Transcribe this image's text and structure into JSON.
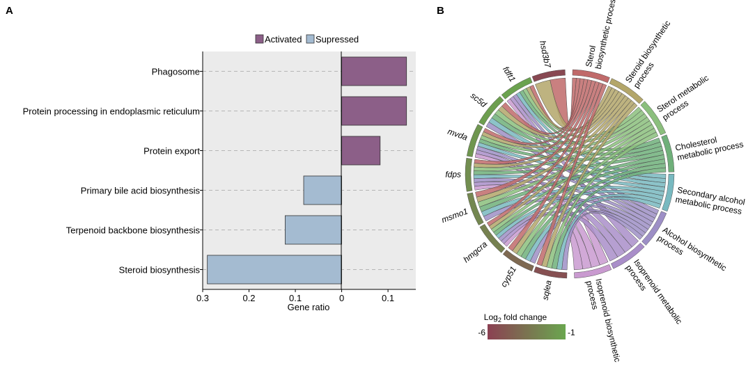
{
  "panel_a_label": "A",
  "panel_b_label": "B",
  "chart_data": [
    {
      "type": "bar",
      "orientation": "horizontal",
      "title": "",
      "xlabel": "Gene ratio",
      "ylabel": "",
      "categories": [
        "Phagosome",
        "Protein processing in endoplasmic reticulum",
        "Protein export",
        "Primary bile acid biosynthesis",
        "Terpenoid backbone biosynthesis",
        "Steroid biosynthesis"
      ],
      "values": [
        0.14,
        0.14,
        0.083,
        -0.082,
        -0.122,
        -0.29
      ],
      "groups": [
        "Activated",
        "Activated",
        "Activated",
        "Supressed",
        "Supressed",
        "Supressed"
      ],
      "x_axis_note": "negative values are plotted to the left of zero; tick labels show absolute values",
      "xlim": [
        -0.3,
        0.16
      ],
      "xticks": [
        -0.3,
        -0.2,
        -0.1,
        0,
        0.1
      ],
      "xtick_labels": [
        "0.3",
        "0.2",
        "0.1",
        "0",
        "0.1"
      ],
      "legend": {
        "position": "top",
        "entries": [
          {
            "label": "Activated",
            "color": "#8c5f88"
          },
          {
            "label": "Supressed",
            "color": "#a4bbd1"
          }
        ]
      },
      "colors": {
        "Activated": "#8c5f88",
        "Supressed": "#a4bbd1",
        "panel_bg": "#ebebeb",
        "gridline": "#b5b5b5"
      }
    },
    {
      "type": "chord",
      "genes": [
        "hsd3b7",
        "fdft1",
        "sc5d",
        "mvda",
        "fdps",
        "msmo1",
        "hmgcra",
        "cyp51",
        "sqlea"
      ],
      "gene_log2_fold_change": [
        -5.6,
        -1.2,
        -1.4,
        -1.8,
        -2.2,
        -2.5,
        -2.8,
        -4.0,
        -5.2
      ],
      "terms": [
        "Sterol biosynthetic process",
        "Steroid biosynthetic process",
        "Sterol metabolic process",
        "Cholesterol metabolic process",
        "Secondary alcohol metabolic process",
        "Alcohol biosynthetic process",
        "Isoprenoid metabolic process",
        "Isoprenoid biosynthetic process"
      ],
      "term_label_lines": [
        [
          "Sterol",
          "biosynthetic process"
        ],
        [
          "Steroid biosynthetic",
          "process"
        ],
        [
          "Sterol metabolic",
          "process"
        ],
        [
          "Cholesterol",
          "metabolic process"
        ],
        [
          "Secondary alcohol",
          "metabolic process"
        ],
        [
          "Alcohol biosynthetic",
          "process"
        ],
        [
          "Isoprenoid metabolic",
          "process"
        ],
        [
          "Isoprenoid biosynthetic",
          "process"
        ]
      ],
      "term_colors": [
        "#c06a6a",
        "#b3a66a",
        "#8bbf7d",
        "#6fb07a",
        "#78b9c0",
        "#9d8fc6",
        "#a98ec9",
        "#c99ad0"
      ],
      "links": [
        {
          "gene": "hsd3b7",
          "terms": [
            "Sterol biosynthetic process",
            "Steroid biosynthetic process"
          ]
        },
        {
          "gene": "fdft1",
          "terms": [
            "Sterol biosynthetic process",
            "Steroid biosynthetic process",
            "Sterol metabolic process",
            "Cholesterol metabolic process",
            "Secondary alcohol metabolic process",
            "Alcohol biosynthetic process",
            "Isoprenoid metabolic process",
            "Isoprenoid biosynthetic process"
          ]
        },
        {
          "gene": "sc5d",
          "terms": [
            "Sterol biosynthetic process",
            "Steroid biosynthetic process",
            "Sterol metabolic process",
            "Cholesterol metabolic process",
            "Secondary alcohol metabolic process",
            "Alcohol biosynthetic process"
          ]
        },
        {
          "gene": "mvda",
          "terms": [
            "Sterol biosynthetic process",
            "Steroid biosynthetic process",
            "Sterol metabolic process",
            "Cholesterol metabolic process",
            "Secondary alcohol metabolic process",
            "Alcohol biosynthetic process",
            "Isoprenoid metabolic process",
            "Isoprenoid biosynthetic process"
          ]
        },
        {
          "gene": "fdps",
          "terms": [
            "Sterol biosynthetic process",
            "Steroid biosynthetic process",
            "Sterol metabolic process",
            "Cholesterol metabolic process",
            "Secondary alcohol metabolic process",
            "Alcohol biosynthetic process",
            "Isoprenoid metabolic process",
            "Isoprenoid biosynthetic process"
          ]
        },
        {
          "gene": "msmo1",
          "terms": [
            "Sterol biosynthetic process",
            "Steroid biosynthetic process",
            "Sterol metabolic process",
            "Cholesterol metabolic process",
            "Secondary alcohol metabolic process",
            "Alcohol biosynthetic process"
          ]
        },
        {
          "gene": "hmgcra",
          "terms": [
            "Sterol biosynthetic process",
            "Steroid biosynthetic process",
            "Sterol metabolic process",
            "Cholesterol metabolic process",
            "Secondary alcohol metabolic process",
            "Alcohol biosynthetic process",
            "Isoprenoid metabolic process",
            "Isoprenoid biosynthetic process"
          ]
        },
        {
          "gene": "cyp51",
          "terms": [
            "Sterol biosynthetic process",
            "Steroid biosynthetic process",
            "Sterol metabolic process",
            "Cholesterol metabolic process",
            "Secondary alcohol metabolic process",
            "Alcohol biosynthetic process"
          ]
        },
        {
          "gene": "sqlea",
          "terms": [
            "Sterol biosynthetic process",
            "Steroid biosynthetic process",
            "Sterol metabolic process",
            "Cholesterol metabolic process",
            "Secondary alcohol metabolic process",
            "Alcohol biosynthetic process"
          ]
        }
      ],
      "colorbar": {
        "title_prefix": "Log",
        "title_subscript": "2",
        "title_suffix": " fold change",
        "min": -6,
        "max": -1,
        "min_label": "-6",
        "max_label": "-1",
        "min_color": "#8b4052",
        "max_color": "#6aa64f"
      }
    }
  ]
}
